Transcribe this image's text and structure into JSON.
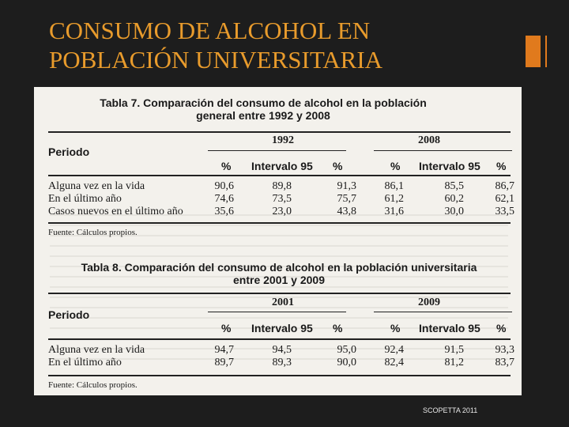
{
  "slide": {
    "title_line1": "CONSUMO DE ALCOHOL EN",
    "title_line2": "POBLACIÓN UNIVERSITARIA",
    "footer": "SCOPETTA 2011",
    "colors": {
      "title": "#e89b2c",
      "accent": "#e07a1d",
      "background": "#1d1d1d"
    }
  },
  "tables": [
    {
      "caption_line1": "Tabla 7. Comparación del consumo de alcohol en la población",
      "caption_line2": "general entre 1992 y 2008",
      "period_label": "Periodo",
      "years": [
        "1992",
        "2008"
      ],
      "col_headers": [
        "%",
        "Intervalo 95",
        "%",
        "%",
        "Intervalo 95",
        "%"
      ],
      "rows": [
        {
          "label": "Alguna vez en la vida",
          "values": [
            "90,6",
            "89,8",
            "91,3",
            "86,1",
            "85,5",
            "86,7"
          ]
        },
        {
          "label": "En el último año",
          "values": [
            "74,6",
            "73,5",
            "75,7",
            "61,2",
            "60,2",
            "62,1"
          ]
        },
        {
          "label": "Casos nuevos en el último año",
          "values": [
            "35,6",
            "23,0",
            "43,8",
            "31,6",
            "30,0",
            "33,5"
          ]
        }
      ],
      "source": "Fuente: Cálculos propios."
    },
    {
      "caption_line1": "Tabla 8. Comparación del consumo de alcohol en la población universitaria",
      "caption_line2": "entre 2001 y 2009",
      "period_label": "Periodo",
      "years": [
        "2001",
        "2009"
      ],
      "col_headers": [
        "%",
        "Intervalo 95",
        "%",
        "%",
        "Intervalo 95",
        "%"
      ],
      "rows": [
        {
          "label": "Alguna vez en la vida",
          "values": [
            "94,7",
            "94,5",
            "95,0",
            "92,4",
            "91,5",
            "93,3"
          ]
        },
        {
          "label": "En el último año",
          "values": [
            "89,7",
            "89,3",
            "90,0",
            "82,4",
            "81,2",
            "83,7"
          ]
        }
      ],
      "source": "Fuente: Cálculos propios."
    }
  ]
}
